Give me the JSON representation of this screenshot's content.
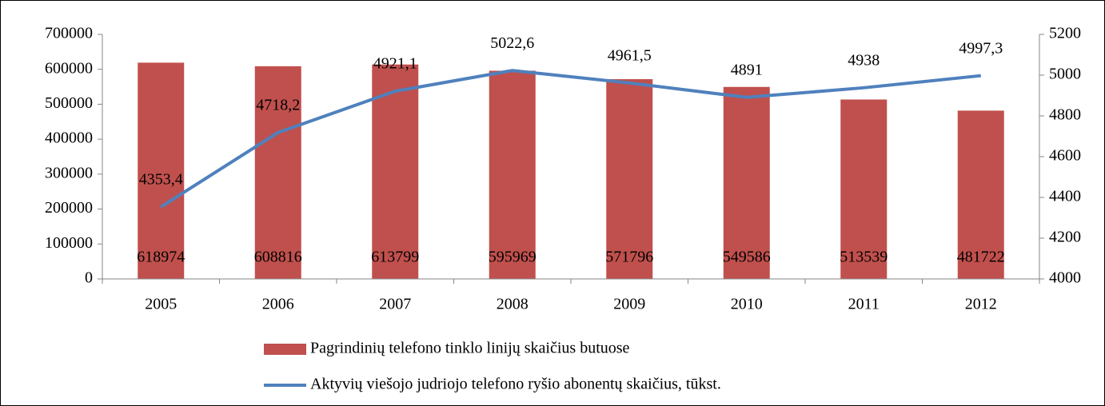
{
  "chart_data": {
    "type": "bar",
    "categories": [
      "2005",
      "2006",
      "2007",
      "2008",
      "2009",
      "2010",
      "2011",
      "2012"
    ],
    "series": [
      {
        "name": "Pagrindinių telefono tinklo linijų skaičius butuose",
        "type": "bar",
        "color": "#c0504d",
        "values": [
          618974,
          608816,
          613799,
          595969,
          571796,
          549586,
          513539,
          481722
        ]
      },
      {
        "name": "Aktyvių viešojo judriojo telefono ryšio abonentų skaičius, tūkst.",
        "type": "line",
        "axis": "y2",
        "color": "#4f81bd",
        "values": [
          4353.4,
          4718.2,
          4921.1,
          5022.6,
          4961.5,
          4891,
          4938,
          4997.3
        ],
        "value_labels": [
          "4353,4",
          "4718,2",
          "4921,1",
          "5022,6",
          "4961,5",
          "4891",
          "4938",
          "4997,3"
        ]
      }
    ],
    "ylim": [
      0,
      700000
    ],
    "yticks": [
      0,
      100000,
      200000,
      300000,
      400000,
      500000,
      600000,
      700000
    ],
    "y2lim": [
      4000,
      5200
    ],
    "y2ticks": [
      4000,
      4200,
      4400,
      4600,
      4800,
      5000,
      5200
    ],
    "grid": false,
    "legend": "bottom"
  }
}
